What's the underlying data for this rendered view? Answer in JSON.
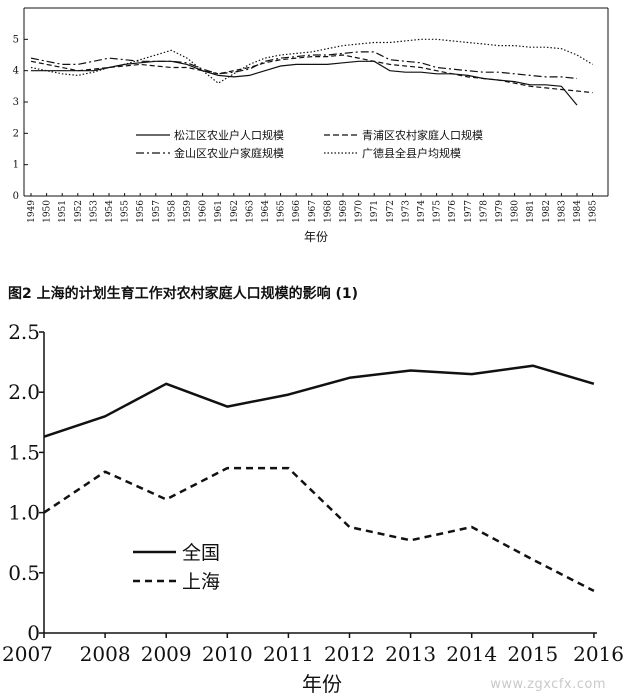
{
  "figure_caption": "图2 上海的计划生育工作对农村家庭人口规模的影响 (1)",
  "watermark": "www.zgxcfx.com",
  "chart_data": [
    {
      "type": "line",
      "title": "",
      "xlabel": "年份",
      "ylabel": "",
      "categories": [
        "1949",
        "1950",
        "1951",
        "1952",
        "1953",
        "1954",
        "1955",
        "1956",
        "1957",
        "1958",
        "1959",
        "1960",
        "1961",
        "1962",
        "1963",
        "1964",
        "1965",
        "1966",
        "1967",
        "1968",
        "1969",
        "1970",
        "1971",
        "1972",
        "1973",
        "1974",
        "1975",
        "1976",
        "1977",
        "1978",
        "1979",
        "1980",
        "1981",
        "1982",
        "1983",
        "1984",
        "1985"
      ],
      "ylim": [
        0,
        6
      ],
      "yticks": [
        0,
        1,
        2,
        3,
        4,
        5
      ],
      "grid": false,
      "legend": "center",
      "series": [
        {
          "name": "松江区农业户人口规模",
          "style": "solid",
          "values": [
            4.0,
            4.0,
            4.0,
            4.0,
            4.0,
            4.1,
            4.2,
            4.25,
            4.3,
            4.3,
            4.2,
            4.0,
            3.85,
            3.8,
            3.85,
            4.0,
            4.15,
            4.2,
            4.2,
            4.2,
            4.25,
            4.3,
            4.3,
            4.0,
            3.95,
            3.95,
            3.9,
            3.9,
            3.85,
            3.75,
            3.7,
            3.65,
            3.55,
            3.55,
            3.5,
            2.9,
            null
          ]
        },
        {
          "name": "青浦区农村家庭人口规模",
          "style": "dashed",
          "values": [
            4.3,
            4.2,
            4.1,
            4.0,
            4.05,
            4.1,
            4.15,
            4.2,
            4.15,
            4.1,
            4.1,
            4.0,
            3.9,
            4.0,
            4.1,
            4.25,
            4.35,
            4.4,
            4.45,
            4.45,
            4.5,
            4.4,
            4.3,
            4.2,
            4.15,
            4.1,
            4.0,
            3.9,
            3.8,
            3.75,
            3.7,
            3.6,
            3.5,
            3.45,
            3.4,
            3.35,
            3.3
          ]
        },
        {
          "name": "金山区农业户家庭规模",
          "style": "dashdot",
          "values": [
            4.4,
            4.3,
            4.2,
            4.2,
            4.3,
            4.4,
            4.35,
            4.3,
            4.3,
            4.3,
            4.25,
            4.05,
            3.9,
            3.95,
            4.05,
            4.3,
            4.4,
            4.45,
            4.5,
            4.5,
            4.55,
            4.6,
            4.6,
            4.35,
            4.3,
            4.25,
            4.1,
            4.05,
            4.0,
            3.95,
            3.95,
            3.9,
            3.85,
            3.8,
            3.8,
            3.75,
            null
          ]
        },
        {
          "name": "广德县全县户均规模",
          "style": "dotted",
          "values": [
            4.1,
            4.0,
            3.9,
            3.85,
            3.95,
            4.1,
            4.2,
            4.35,
            4.5,
            4.65,
            4.4,
            4.0,
            3.6,
            3.9,
            4.2,
            4.4,
            4.5,
            4.55,
            4.6,
            4.7,
            4.8,
            4.85,
            4.9,
            4.9,
            4.95,
            5.0,
            5.0,
            4.95,
            4.9,
            4.85,
            4.8,
            4.8,
            4.75,
            4.75,
            4.7,
            4.5,
            4.2
          ]
        }
      ]
    },
    {
      "type": "line",
      "title": "",
      "xlabel": "年份",
      "ylabel": "",
      "categories": [
        "2007",
        "2008",
        "2009",
        "2010",
        "2011",
        "2012",
        "2013",
        "2014",
        "2015",
        "2016"
      ],
      "ylim": [
        0,
        2.5
      ],
      "yticks": [
        "0",
        "0.5",
        "1.0",
        "1.5",
        "2.0",
        "2.5"
      ],
      "grid": false,
      "legend": "center-left",
      "series": [
        {
          "name": "全国",
          "style": "solid",
          "values": [
            1.63,
            1.8,
            2.07,
            1.88,
            1.98,
            2.12,
            2.18,
            2.15,
            2.22,
            2.07
          ]
        },
        {
          "name": "上海",
          "style": "dashed",
          "values": [
            1.0,
            1.34,
            1.11,
            1.37,
            1.37,
            0.88,
            0.77,
            0.88,
            0.61,
            0.35
          ]
        }
      ]
    }
  ]
}
